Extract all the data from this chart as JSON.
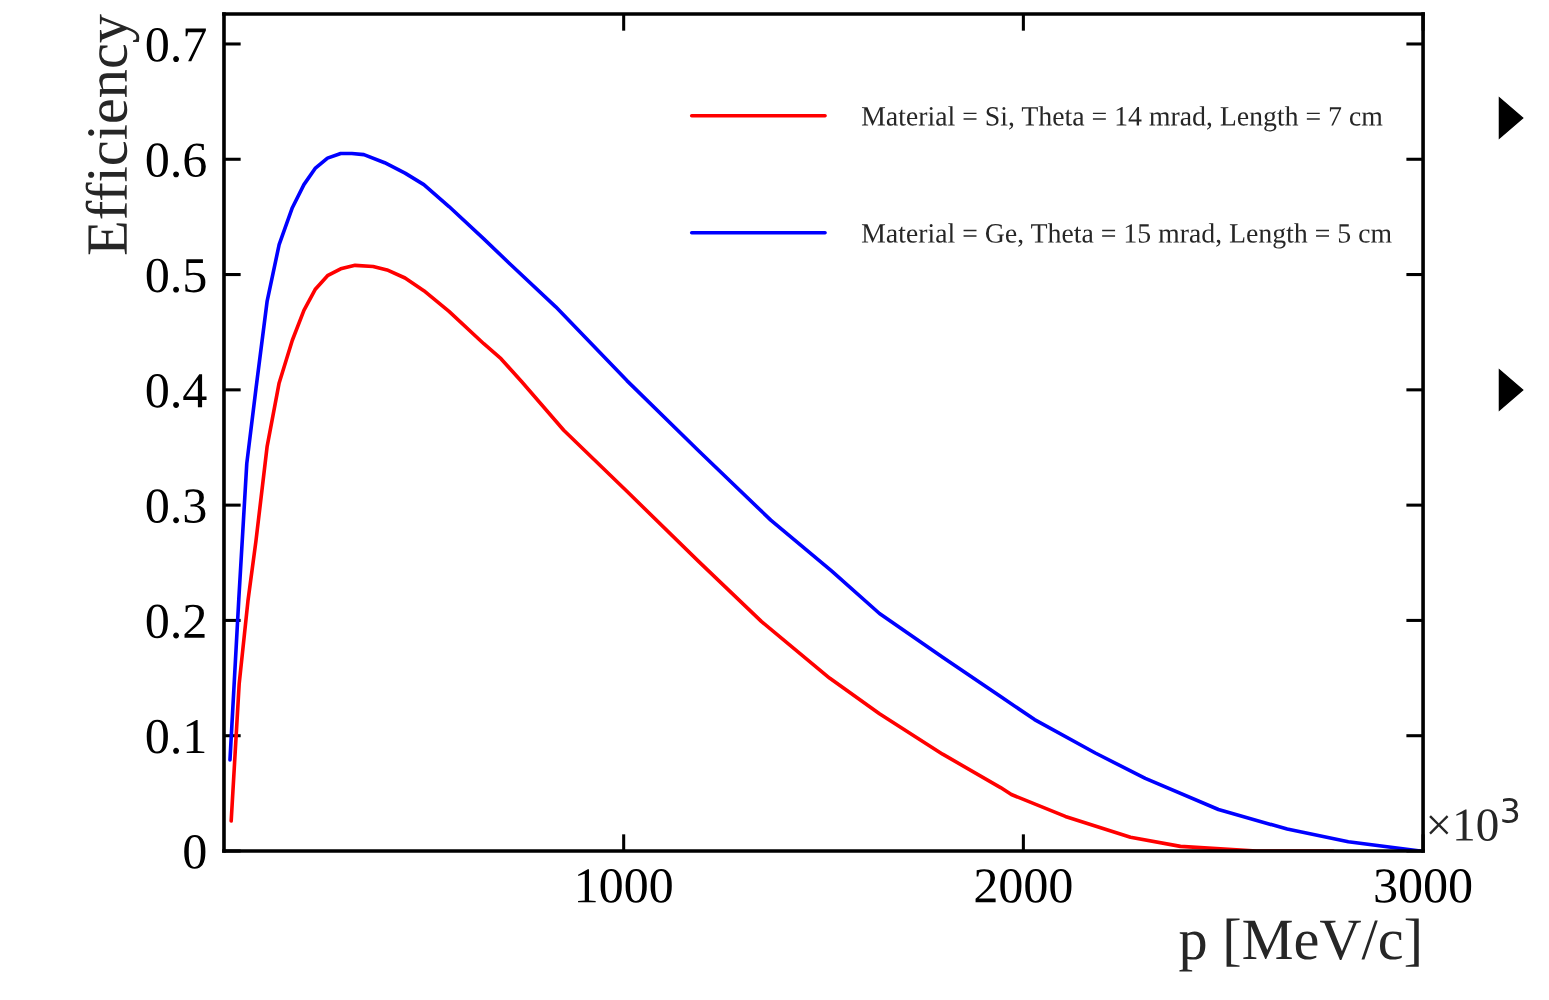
{
  "chart_data": {
    "type": "line",
    "xlabel": "p [MeV/c]",
    "ylabel": "Efficiency",
    "xlim": [
      0,
      3000
    ],
    "xticks": [
      1000,
      2000,
      3000
    ],
    "ylim": [
      0,
      0.726
    ],
    "yticks": [
      0,
      0.1,
      0.2,
      0.3,
      0.4,
      0.5,
      0.6,
      0.7
    ],
    "annotations": [
      "×10$^{3}$"
    ],
    "legend": "top right",
    "grid": false,
    "marker": "none",
    "line_style": "solid",
    "series": [
      {
        "name": "Material = Si, Theta = 14 mrad, Length = 7 cm",
        "color": "#ff0000",
        "x": [
          18,
          38,
          60,
          80,
          108,
          138,
          171,
          200,
          228,
          259,
          292,
          328,
          373,
          408,
          453,
          500,
          563,
          650,
          693,
          745,
          850,
          1008,
          1188,
          1345,
          1515,
          1640,
          1798,
          1943,
          1970,
          2105,
          2268,
          2393,
          2583,
          2775
        ],
        "values": [
          0.026,
          0.145,
          0.217,
          0.269,
          0.351,
          0.406,
          0.443,
          0.469,
          0.487,
          0.499,
          0.505,
          0.508,
          0.507,
          0.504,
          0.497,
          0.486,
          0.468,
          0.44,
          0.427,
          0.407,
          0.365,
          0.312,
          0.251,
          0.199,
          0.15,
          0.119,
          0.084,
          0.055,
          0.049,
          0.03,
          0.012,
          0.004,
          0.0,
          0.0
        ]
      },
      {
        "name": "Material = Ge, Theta = 15 mrad, Length = 5 cm",
        "color": "#0000ff",
        "x": [
          15,
          37,
          57,
          80,
          108,
          138,
          171,
          200,
          228,
          259,
          292,
          320,
          350,
          402,
          453,
          500,
          563,
          650,
          713,
          830,
          1008,
          1188,
          1368,
          1520,
          1640,
          1798,
          1943,
          2028,
          2180,
          2305,
          2488,
          2660,
          2813,
          2993
        ],
        "values": [
          0.079,
          0.218,
          0.336,
          0.401,
          0.477,
          0.526,
          0.558,
          0.578,
          0.592,
          0.601,
          0.605,
          0.605,
          0.604,
          0.597,
          0.588,
          0.578,
          0.559,
          0.531,
          0.51,
          0.472,
          0.408,
          0.347,
          0.287,
          0.243,
          0.206,
          0.168,
          0.134,
          0.114,
          0.085,
          0.063,
          0.036,
          0.019,
          0.008,
          0.0
        ]
      }
    ]
  }
}
